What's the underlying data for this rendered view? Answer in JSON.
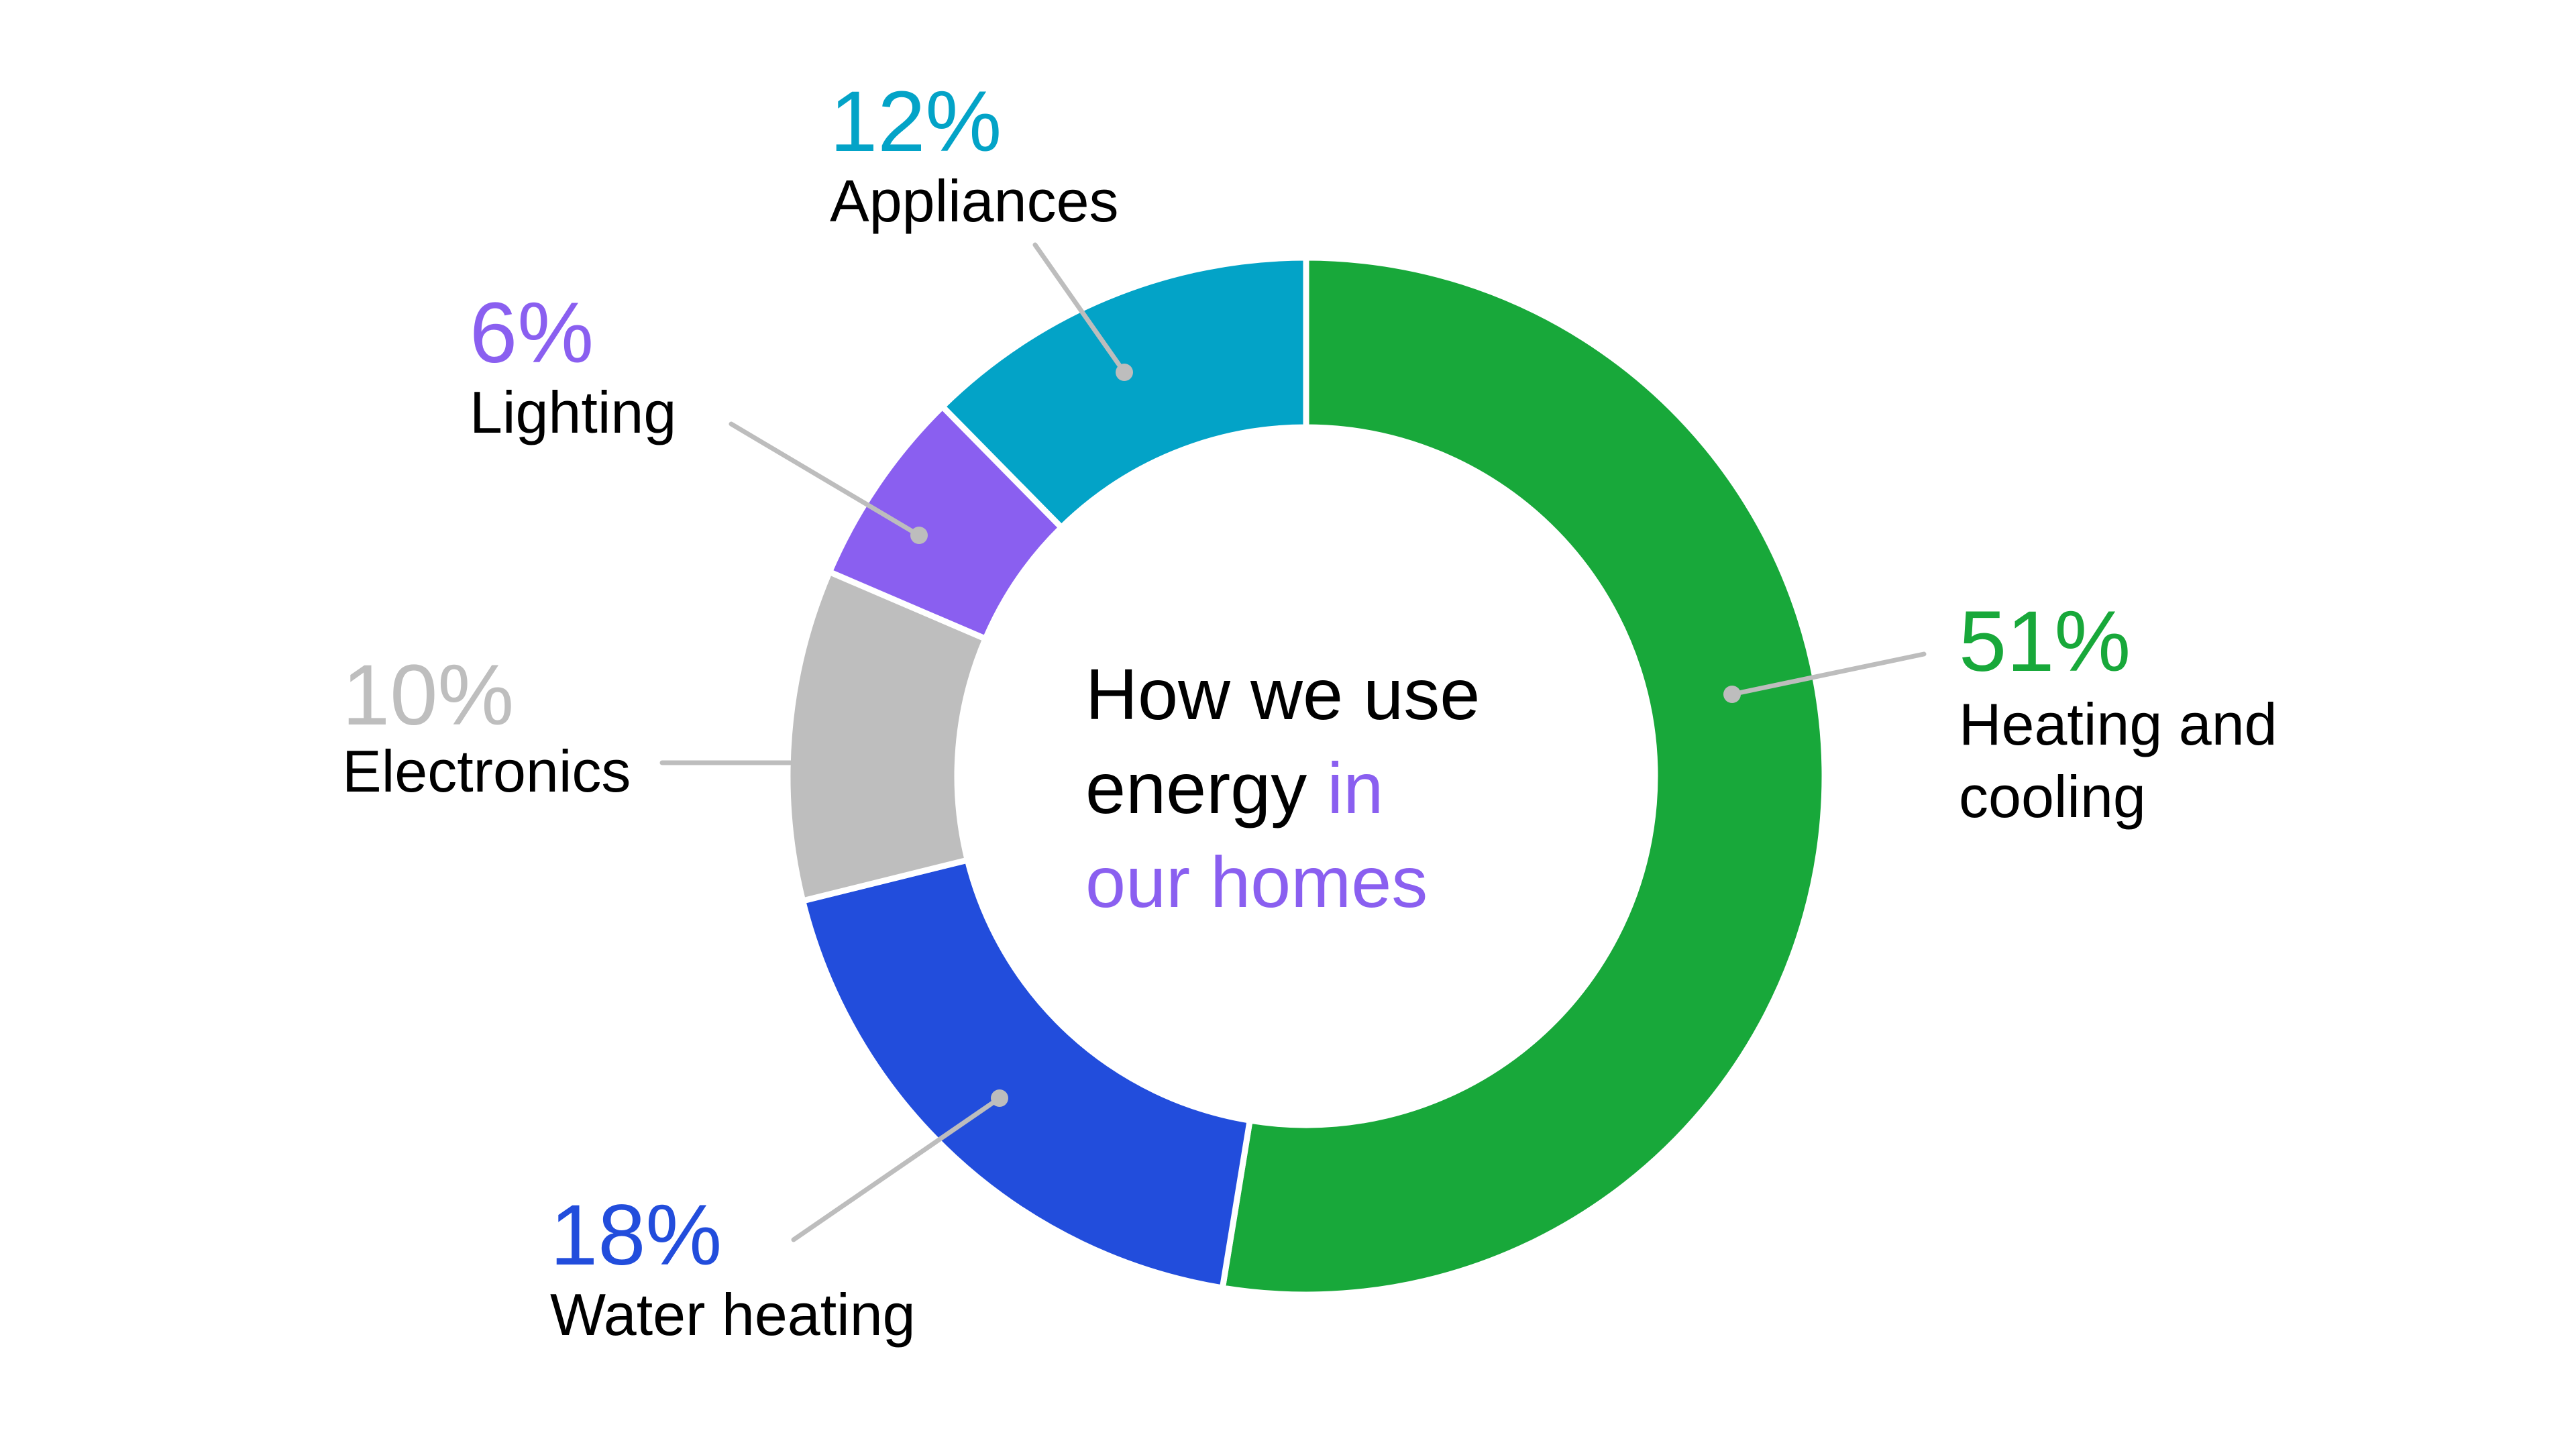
{
  "chart_data": {
    "type": "pie",
    "variant": "donut",
    "title_parts": [
      {
        "text": "How we use",
        "highlight": false
      },
      {
        "text": "energy",
        "highlight": false
      },
      {
        "text": "in",
        "highlight": true
      },
      {
        "text": "our homes",
        "highlight": true
      }
    ],
    "slices": [
      {
        "label_lines": [
          "Heating and",
          "cooling"
        ],
        "value": 51,
        "value_label": "51%",
        "color": "#18a83a"
      },
      {
        "label_lines": [
          "Water heating"
        ],
        "value": 18,
        "value_label": "18%",
        "color": "#224ddc"
      },
      {
        "label_lines": [
          "Electronics"
        ],
        "value": 10,
        "value_label": "10%",
        "color": "#bebebe"
      },
      {
        "label_lines": [
          "Lighting"
        ],
        "value": 6,
        "value_label": "6%",
        "color": "#8a5ff0"
      },
      {
        "label_lines": [
          "Appliances"
        ],
        "value": 12,
        "value_label": "12%",
        "color": "#03a3c7"
      }
    ],
    "start": "12 o'clock",
    "direction": "clockwise",
    "title_color": "#000000",
    "highlight_color": "#8a5ff0",
    "leader_color": "#bdbdbd"
  }
}
